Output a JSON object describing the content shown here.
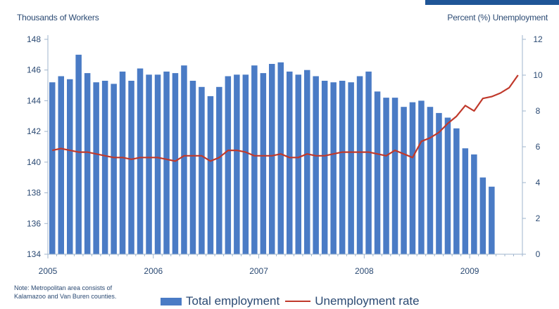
{
  "chart_data": {
    "type": "bar",
    "left_axis_title": "Thousands of Workers",
    "right_axis_title": "Percent (%) Unemployment",
    "y_left": {
      "min": 134,
      "max": 148,
      "ticks": [
        134,
        136,
        138,
        140,
        142,
        144,
        146,
        148
      ]
    },
    "y_right": {
      "min": 0,
      "max": 12,
      "ticks": [
        0,
        2,
        4,
        6,
        8,
        10,
        12
      ]
    },
    "x_labels": [
      {
        "label": "2005",
        "index": 0
      },
      {
        "label": "2006",
        "index": 12
      },
      {
        "label": "2007",
        "index": 24
      },
      {
        "label": "2008",
        "index": 36
      },
      {
        "label": "2009",
        "index": 48
      }
    ],
    "series": [
      {
        "name": "Total employment",
        "type": "bar",
        "axis": "left",
        "color": "#4a7bc5",
        "values": [
          145.2,
          145.6,
          145.4,
          147.0,
          145.8,
          145.2,
          145.3,
          145.1,
          145.9,
          145.3,
          146.1,
          145.7,
          145.7,
          145.9,
          145.8,
          146.3,
          145.3,
          144.9,
          144.3,
          144.9,
          145.6,
          145.7,
          145.7,
          146.3,
          145.8,
          146.4,
          146.5,
          145.9,
          145.7,
          146.0,
          145.6,
          145.3,
          145.2,
          145.3,
          145.2,
          145.6,
          145.9,
          144.6,
          144.2,
          144.2,
          143.6,
          143.9,
          144.0,
          143.6,
          143.2,
          142.9,
          142.2,
          140.9,
          140.5,
          139.0,
          138.4
        ]
      },
      {
        "name": "Unemployment rate",
        "type": "line",
        "axis": "right",
        "color": "#c0392b",
        "values": [
          5.8,
          5.9,
          5.8,
          5.7,
          5.7,
          5.6,
          5.5,
          5.4,
          5.4,
          5.3,
          5.4,
          5.4,
          5.4,
          5.3,
          5.2,
          5.5,
          5.5,
          5.5,
          5.2,
          5.4,
          5.8,
          5.8,
          5.7,
          5.5,
          5.5,
          5.5,
          5.6,
          5.4,
          5.4,
          5.6,
          5.5,
          5.5,
          5.6,
          5.7,
          5.7,
          5.7,
          5.7,
          5.6,
          5.5,
          5.8,
          5.6,
          5.4,
          6.3,
          6.5,
          6.8,
          7.3,
          7.7,
          8.3,
          8.0,
          8.7,
          8.8,
          9.0,
          9.3,
          10.0
        ]
      }
    ],
    "grid": false,
    "legend_position": "bottom"
  },
  "note": [
    "Note: Metropolitan area consists of",
    "Kalamazoo and Van Buren counties."
  ]
}
